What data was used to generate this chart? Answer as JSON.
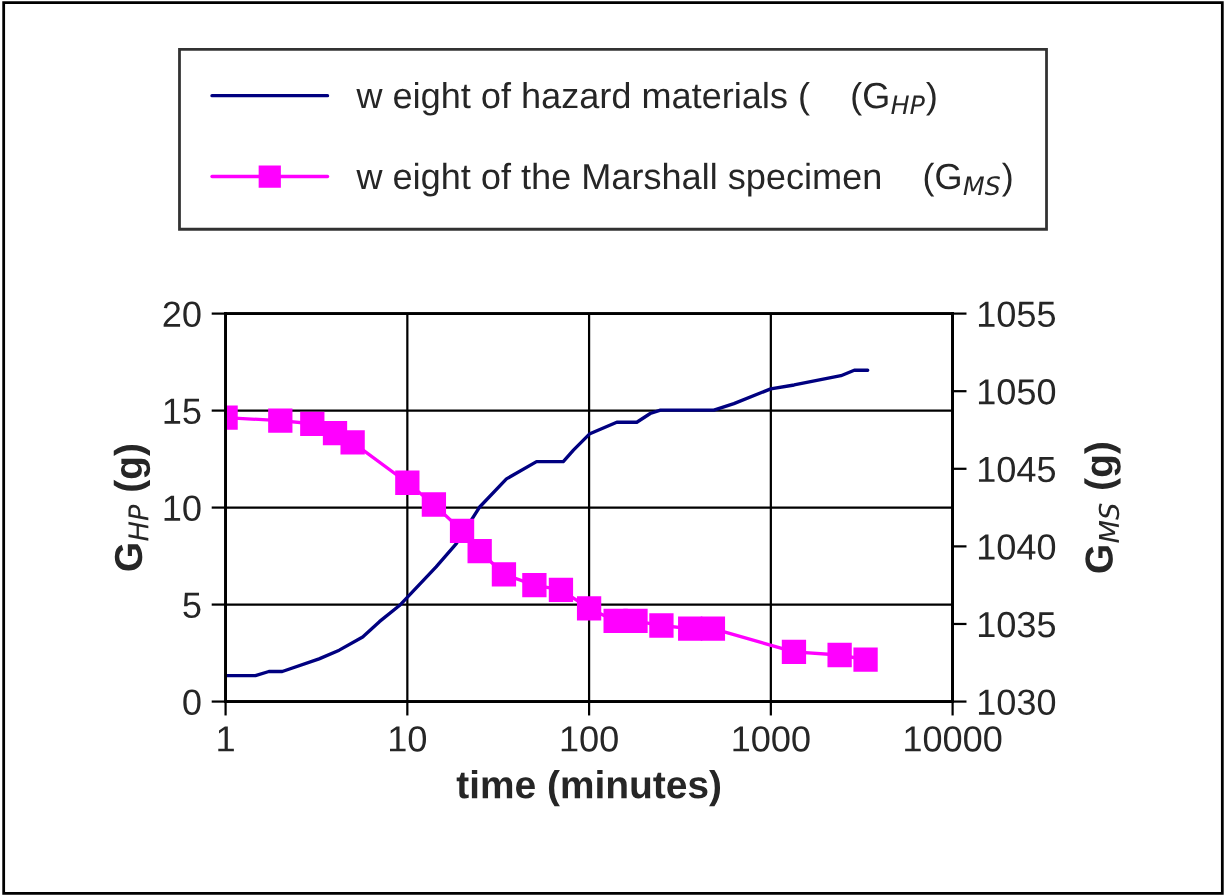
{
  "chart_data": {
    "type": "line",
    "xlabel": "time (minutes)",
    "ylabel": "G$_{HP}$ (g)",
    "y2label": "G$_{MS}$ (g)",
    "log": "x",
    "grid": true,
    "legend": "top",
    "xlim": [
      1,
      10000
    ],
    "xticks": [
      1,
      10,
      100,
      1000,
      10000
    ],
    "ylim": [
      0,
      20
    ],
    "yticks": [
      0,
      5,
      10,
      15,
      20
    ],
    "y2lim": [
      1030,
      1055
    ],
    "y2ticks": [
      1030,
      1035,
      1040,
      1045,
      1050,
      1055
    ],
    "series": [
      {
        "name": "w eight of hazard materials (    (G$_{HP}$)",
        "color": "#000080",
        "marker": "none",
        "x": [
          1,
          1.46,
          1.73,
          2.05,
          3.27,
          4.22,
          5.68,
          7.02,
          9.05,
          14.4,
          18.6,
          25,
          35.1,
          51.4,
          72.1,
          82,
          101,
          142,
          183,
          217,
          247,
          486,
          626,
          998,
          1343,
          2430,
          2877,
          3412
        ],
        "values": [
          1.34,
          1.34,
          1.55,
          1.55,
          2.2,
          2.65,
          3.33,
          4.12,
          4.95,
          6.94,
          8.14,
          10.03,
          11.48,
          12.37,
          12.37,
          12.96,
          13.81,
          14.4,
          14.4,
          14.85,
          15.02,
          15.02,
          15.36,
          16.12,
          16.32,
          16.8,
          17.08,
          17.08
        ]
      },
      {
        "name": "w eight of the Marshall specimen    (G$_{MS}$)",
        "color": "#ff00ff",
        "marker": "square",
        "axis": "y2",
        "x": [
          1,
          2,
          3,
          4,
          5,
          10,
          14,
          20,
          25,
          34,
          50,
          70,
          100,
          140,
          180,
          250,
          360,
          480,
          1340,
          2390,
          3320
        ],
        "values": [
          1048.3,
          1048.1,
          1047.9,
          1047.3,
          1046.7,
          1044.1,
          1042.7,
          1041.0,
          1039.7,
          1038.2,
          1037.5,
          1037.2,
          1036.0,
          1035.2,
          1035.2,
          1034.9,
          1034.7,
          1034.7,
          1033.2,
          1033.0,
          1032.7
        ]
      }
    ]
  }
}
